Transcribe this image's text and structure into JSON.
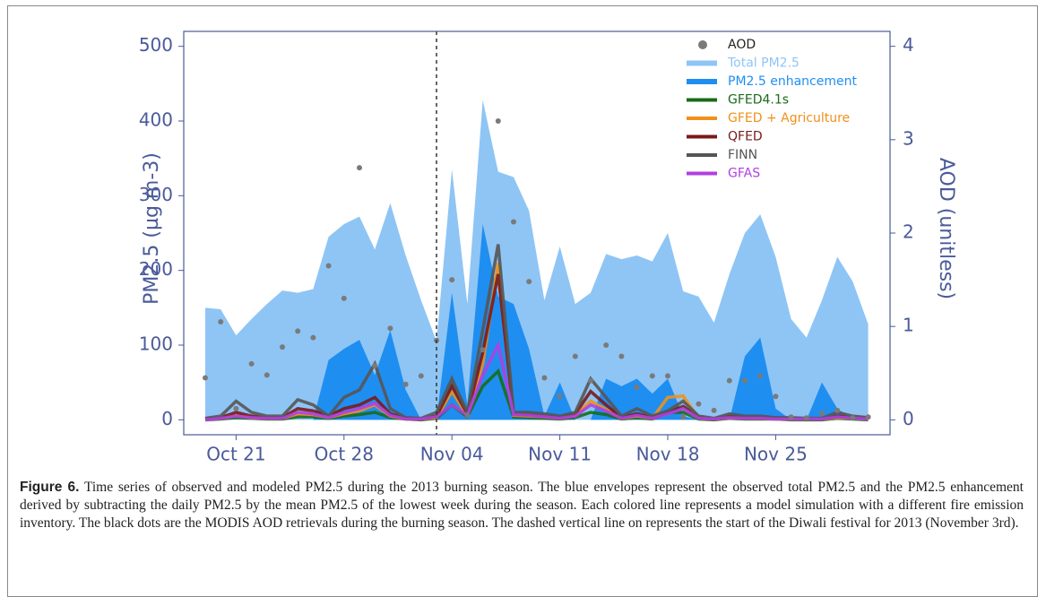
{
  "chart_data": {
    "type": "area-line-scatter",
    "ylabel": "PM2.5  (µg m-3)",
    "y2label": "AOD  (unitless)",
    "categories": [
      null,
      null,
      "Oct 21",
      null,
      null,
      null,
      null,
      null,
      null,
      "Oct 28",
      null,
      null,
      null,
      null,
      null,
      null,
      "Nov 04",
      null,
      null,
      null,
      null,
      null,
      null,
      "Nov 11",
      null,
      null,
      null,
      null,
      null,
      null,
      "Nov 18",
      null,
      null,
      null,
      null,
      null,
      null,
      "Nov 25",
      null,
      null,
      null,
      null,
      null,
      null
    ],
    "ylim": [
      -20,
      520
    ],
    "yticks": [
      0,
      100,
      200,
      300,
      400,
      500
    ],
    "y2lim": [
      -0.16,
      4.16
    ],
    "y2ticks": [
      0,
      1,
      2,
      3,
      4
    ],
    "vline_index": 15,
    "series": [
      {
        "name": "Total PM2.5",
        "kind": "area",
        "color": "#8ec5f5",
        "values": [
          150,
          148,
          113,
          135,
          155,
          173,
          170,
          175,
          245,
          262,
          272,
          228,
          290,
          220,
          160,
          105,
          335,
          155,
          428,
          332,
          325,
          280,
          160,
          232,
          155,
          170,
          222,
          215,
          220,
          212,
          250,
          172,
          165,
          130,
          195,
          250,
          275,
          218,
          135,
          110,
          160,
          218,
          185,
          128
        ]
      },
      {
        "name": "PM2.5 enhancement",
        "kind": "area",
        "color": "#1f8ef1",
        "values": [
          0,
          0,
          0,
          0,
          0,
          0,
          0,
          0,
          80,
          95,
          107,
          60,
          120,
          40,
          0,
          0,
          170,
          20,
          262,
          165,
          155,
          95,
          5,
          50,
          0,
          0,
          55,
          45,
          55,
          35,
          55,
          5,
          0,
          0,
          0,
          85,
          110,
          15,
          0,
          0,
          50,
          15,
          0,
          5
        ]
      },
      {
        "name": "GFED4.1s",
        "kind": "line",
        "color": "#1a6b1a",
        "values": [
          0,
          1,
          3,
          2,
          1,
          1,
          4,
          4,
          2,
          5,
          7,
          10,
          3,
          1,
          0,
          2,
          20,
          4,
          45,
          65,
          4,
          3,
          2,
          1,
          3,
          10,
          7,
          1,
          3,
          1,
          10,
          10,
          1,
          0,
          2,
          1,
          1,
          1,
          0,
          0,
          0,
          2,
          1,
          0
        ]
      },
      {
        "name": "GFED + Agriculture",
        "kind": "line",
        "color": "#f0901a",
        "values": [
          1,
          2,
          6,
          3,
          2,
          2,
          8,
          7,
          3,
          8,
          12,
          20,
          5,
          1,
          1,
          3,
          38,
          6,
          75,
          210,
          6,
          5,
          4,
          2,
          6,
          25,
          14,
          2,
          5,
          2,
          30,
          32,
          2,
          1,
          3,
          2,
          2,
          1,
          1,
          1,
          1,
          3,
          2,
          1
        ]
      },
      {
        "name": "QFED",
        "kind": "line",
        "color": "#7a1a1a",
        "values": [
          1,
          3,
          10,
          5,
          3,
          3,
          15,
          12,
          5,
          15,
          20,
          30,
          8,
          2,
          1,
          5,
          45,
          8,
          90,
          195,
          8,
          7,
          5,
          3,
          8,
          38,
          20,
          3,
          8,
          3,
          10,
          18,
          3,
          1,
          5,
          3,
          3,
          2,
          2,
          1,
          1,
          5,
          3,
          2
        ]
      },
      {
        "name": "FINN",
        "kind": "line",
        "color": "#555555",
        "values": [
          2,
          5,
          25,
          10,
          5,
          5,
          27,
          20,
          5,
          30,
          40,
          75,
          15,
          3,
          2,
          10,
          55,
          10,
          120,
          235,
          10,
          10,
          8,
          5,
          10,
          55,
          30,
          5,
          15,
          5,
          12,
          25,
          5,
          2,
          8,
          5,
          5,
          3,
          3,
          2,
          2,
          10,
          5,
          3
        ]
      },
      {
        "name": "GFAS",
        "kind": "line",
        "color": "#b040e0",
        "values": [
          0,
          2,
          5,
          3,
          2,
          2,
          10,
          8,
          3,
          10,
          15,
          22,
          6,
          1,
          1,
          4,
          20,
          6,
          60,
          100,
          7,
          6,
          4,
          2,
          5,
          20,
          12,
          2,
          6,
          2,
          8,
          15,
          2,
          1,
          3,
          2,
          2,
          1,
          1,
          1,
          1,
          4,
          2,
          1
        ]
      },
      {
        "name": "AOD",
        "kind": "scatter",
        "axis": "y2",
        "color": "#7a7a7a",
        "values": [
          0.45,
          1.05,
          0.12,
          0.6,
          0.48,
          0.78,
          0.95,
          0.88,
          1.65,
          1.3,
          2.7,
          0.58,
          0.98,
          0.38,
          0.47,
          0.85,
          1.5,
          0.05,
          0.75,
          3.2,
          2.12,
          1.48,
          0.45,
          0.25,
          0.68,
          0.42,
          0.8,
          0.68,
          0.35,
          0.47,
          0.47,
          0.03,
          0.17,
          0.1,
          0.42,
          0.42,
          0.47,
          0.25,
          0.03,
          0.02,
          0.07,
          0.1,
          0.02,
          0.03
        ]
      }
    ]
  },
  "caption": {
    "label": "Figure 6.",
    "text": "Time series of observed and modeled PM2.5 during the 2013 burning season. The blue envelopes represent the observed total PM2.5 and the PM2.5 enhancement derived by subtracting the daily PM2.5 by the mean PM2.5 of the lowest week during the season. Each colored line represents a model simulation with a different fire emission inventory. The black dots are the MODIS AOD retrievals during the burning season. The dashed vertical line on represents the start of the Diwali festival for 2013 (November 3rd)."
  }
}
